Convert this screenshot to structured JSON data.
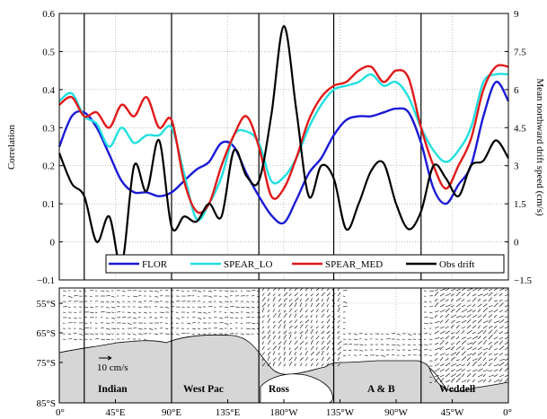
{
  "chart_data": [
    {
      "type": "line",
      "ylabel": "Correlation",
      "y2label": "Mean northward drift speed (cm/s)",
      "ylim": [
        -0.1,
        0.6
      ],
      "yticks": [
        "0.6",
        "0.5",
        "0.4",
        "0.3",
        "0.2",
        "0.1",
        "0",
        "−0.1"
      ],
      "yticks_values": [
        0.6,
        0.5,
        0.4,
        0.3,
        0.2,
        0.1,
        0,
        -0.1
      ],
      "y2lim": [
        -1.5,
        9
      ],
      "y2ticks": [
        "9",
        "7.5",
        "6",
        "4.5",
        "3",
        "1.5",
        "0",
        "−1.5"
      ],
      "y2ticks_values": [
        9,
        7.5,
        6,
        4.5,
        3,
        1.5,
        0,
        -1.5
      ],
      "xlim": [
        0,
        360
      ],
      "grid": true,
      "legend_position": "bottom",
      "series": [
        {
          "name": "FLOR",
          "color": "#1a1ad6",
          "axis": "left",
          "x": [
            0,
            10,
            20,
            30,
            40,
            50,
            60,
            70,
            80,
            90,
            100,
            110,
            120,
            130,
            140,
            150,
            160,
            170,
            180,
            190,
            200,
            210,
            220,
            230,
            240,
            250,
            260,
            270,
            280,
            290,
            300,
            310,
            320,
            330,
            340,
            350,
            360
          ],
          "y": [
            0.25,
            0.33,
            0.34,
            0.3,
            0.23,
            0.16,
            0.13,
            0.13,
            0.12,
            0.13,
            0.16,
            0.19,
            0.21,
            0.26,
            0.25,
            0.18,
            0.12,
            0.07,
            0.05,
            0.11,
            0.18,
            0.22,
            0.28,
            0.32,
            0.33,
            0.33,
            0.34,
            0.35,
            0.34,
            0.26,
            0.14,
            0.1,
            0.15,
            0.2,
            0.33,
            0.42,
            0.37
          ]
        },
        {
          "name": "SPEAR_LO",
          "color": "#22e0e0",
          "axis": "left",
          "x": [
            0,
            10,
            20,
            30,
            40,
            50,
            60,
            70,
            80,
            90,
            100,
            110,
            120,
            130,
            140,
            150,
            160,
            170,
            180,
            190,
            200,
            210,
            220,
            230,
            240,
            250,
            260,
            270,
            280,
            290,
            300,
            310,
            320,
            330,
            340,
            350,
            360
          ],
          "y": [
            0.37,
            0.39,
            0.33,
            0.31,
            0.25,
            0.3,
            0.26,
            0.28,
            0.28,
            0.3,
            0.18,
            0.06,
            0.1,
            0.17,
            0.28,
            0.29,
            0.26,
            0.16,
            0.17,
            0.22,
            0.3,
            0.36,
            0.4,
            0.41,
            0.42,
            0.44,
            0.41,
            0.42,
            0.38,
            0.3,
            0.24,
            0.21,
            0.24,
            0.3,
            0.42,
            0.44,
            0.44
          ]
        },
        {
          "name": "SPEAR_MED",
          "color": "#e01a1a",
          "axis": "left",
          "x": [
            0,
            10,
            20,
            30,
            40,
            50,
            60,
            70,
            80,
            90,
            100,
            110,
            120,
            130,
            140,
            150,
            160,
            170,
            180,
            190,
            200,
            210,
            220,
            230,
            240,
            250,
            260,
            270,
            280,
            290,
            300,
            310,
            320,
            330,
            340,
            350,
            360
          ],
          "y": [
            0.36,
            0.38,
            0.33,
            0.34,
            0.3,
            0.36,
            0.33,
            0.38,
            0.3,
            0.32,
            0.16,
            0.08,
            0.1,
            0.2,
            0.28,
            0.33,
            0.25,
            0.12,
            0.14,
            0.22,
            0.32,
            0.38,
            0.41,
            0.42,
            0.45,
            0.46,
            0.42,
            0.45,
            0.43,
            0.3,
            0.2,
            0.14,
            0.2,
            0.27,
            0.4,
            0.46,
            0.46
          ]
        },
        {
          "name": "Obs drift",
          "color": "#000000",
          "axis": "right",
          "x": [
            0,
            10,
            20,
            30,
            40,
            50,
            60,
            70,
            80,
            90,
            100,
            110,
            120,
            130,
            140,
            150,
            160,
            170,
            180,
            190,
            200,
            210,
            220,
            230,
            240,
            250,
            260,
            270,
            280,
            290,
            300,
            310,
            320,
            330,
            340,
            350,
            360
          ],
          "y": [
            3.5,
            2.3,
            1.8,
            0.0,
            1.0,
            -0.9,
            3.0,
            2.0,
            4.0,
            0.6,
            1.0,
            0.8,
            1.5,
            1.0,
            3.6,
            2.6,
            2.4,
            5.0,
            8.5,
            5.2,
            1.8,
            3.0,
            2.5,
            0.5,
            1.5,
            2.8,
            3.1,
            1.5,
            0.5,
            1.2,
            3.0,
            2.5,
            1.8,
            3.0,
            3.2,
            4.0,
            3.3
          ]
        }
      ]
    },
    {
      "type": "map",
      "x_ticks": [
        "0°",
        "45°E",
        "90°E",
        "135°E",
        "180°W",
        "135°W",
        "90°W",
        "45°W",
        "0°"
      ],
      "y_ticks": [
        "55°S",
        "65°S",
        "75°S",
        "85°S"
      ],
      "scale_label": "10 cm/s",
      "regions": [
        "Indian",
        "West Pac",
        "Ross",
        "A & B",
        "Weddell"
      ]
    }
  ],
  "colors": {
    "land": "#d6d6d6",
    "frame": "#000000",
    "grid": "#9a9a9a"
  }
}
